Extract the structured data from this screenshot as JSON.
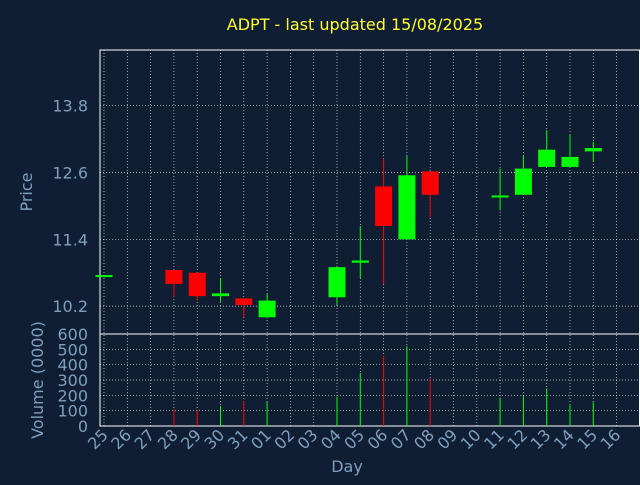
{
  "chart_data": {
    "type": "candlestick",
    "title": "ADPT - last updated 15/08/2025",
    "xlabel": "Day",
    "price_ylabel": "Price",
    "volume_ylabel": "Volume (0000)",
    "x_ticks": [
      "25",
      "26",
      "27",
      "28",
      "29",
      "30",
      "31",
      "01",
      "02",
      "03",
      "04",
      "05",
      "06",
      "07",
      "08",
      "09",
      "10",
      "11",
      "12",
      "13",
      "14",
      "15",
      "16"
    ],
    "price_axis": {
      "ylim": [
        9.7,
        14.8
      ],
      "ticks": [
        "10.2",
        "11.4",
        "12.6",
        "13.8"
      ]
    },
    "volume_axis": {
      "ylim": [
        0,
        600
      ],
      "ticks": [
        "0",
        "100",
        "200",
        "300",
        "400",
        "500",
        "600"
      ]
    },
    "grid": true,
    "colors": {
      "background": "#0f1e33",
      "title": "#ffff33",
      "axis_text": "#7f9fbf",
      "frame": "#ffffff",
      "grid": "#ffffff",
      "up": "#00ff00",
      "down": "#ff0000"
    },
    "candles": [
      {
        "day": "25",
        "open": 10.74,
        "close": 10.74,
        "high": 10.74,
        "low": 10.74,
        "volume": 0
      },
      {
        "day": "28",
        "open": 10.85,
        "close": 10.6,
        "high": 10.85,
        "low": 10.37,
        "volume": 110
      },
      {
        "day": "29",
        "open": 10.8,
        "close": 10.38,
        "high": 10.8,
        "low": 10.3,
        "volume": 105
      },
      {
        "day": "30",
        "open": 10.38,
        "close": 10.43,
        "high": 10.7,
        "low": 10.28,
        "volume": 130
      },
      {
        "day": "31",
        "open": 10.34,
        "close": 10.22,
        "high": 10.34,
        "low": 10.0,
        "volume": 165
      },
      {
        "day": "01",
        "open": 10.0,
        "close": 10.3,
        "high": 10.42,
        "low": 10.0,
        "volume": 160
      },
      {
        "day": "04",
        "open": 10.36,
        "close": 10.9,
        "high": 10.9,
        "low": 10.22,
        "volume": 190
      },
      {
        "day": "05",
        "open": 10.98,
        "close": 11.02,
        "high": 11.64,
        "low": 10.7,
        "volume": 345
      },
      {
        "day": "06",
        "open": 12.35,
        "close": 11.64,
        "high": 12.85,
        "low": 10.6,
        "volume": 460
      },
      {
        "day": "07",
        "open": 11.4,
        "close": 12.55,
        "high": 12.9,
        "low": 11.4,
        "volume": 520
      },
      {
        "day": "08",
        "open": 12.62,
        "close": 12.2,
        "high": 12.62,
        "low": 11.8,
        "volume": 310
      },
      {
        "day": "11",
        "open": 12.17,
        "close": 12.17,
        "high": 12.67,
        "low": 11.92,
        "volume": 185
      },
      {
        "day": "12",
        "open": 12.2,
        "close": 12.67,
        "high": 12.9,
        "low": 12.2,
        "volume": 195
      },
      {
        "day": "13",
        "open": 12.7,
        "close": 13.01,
        "high": 13.36,
        "low": 12.7,
        "volume": 245
      },
      {
        "day": "14",
        "open": 12.7,
        "close": 12.88,
        "high": 13.28,
        "low": 12.7,
        "volume": 135
      },
      {
        "day": "15",
        "open": 12.98,
        "close": 13.04,
        "high": 13.15,
        "low": 12.8,
        "volume": 155
      }
    ]
  }
}
